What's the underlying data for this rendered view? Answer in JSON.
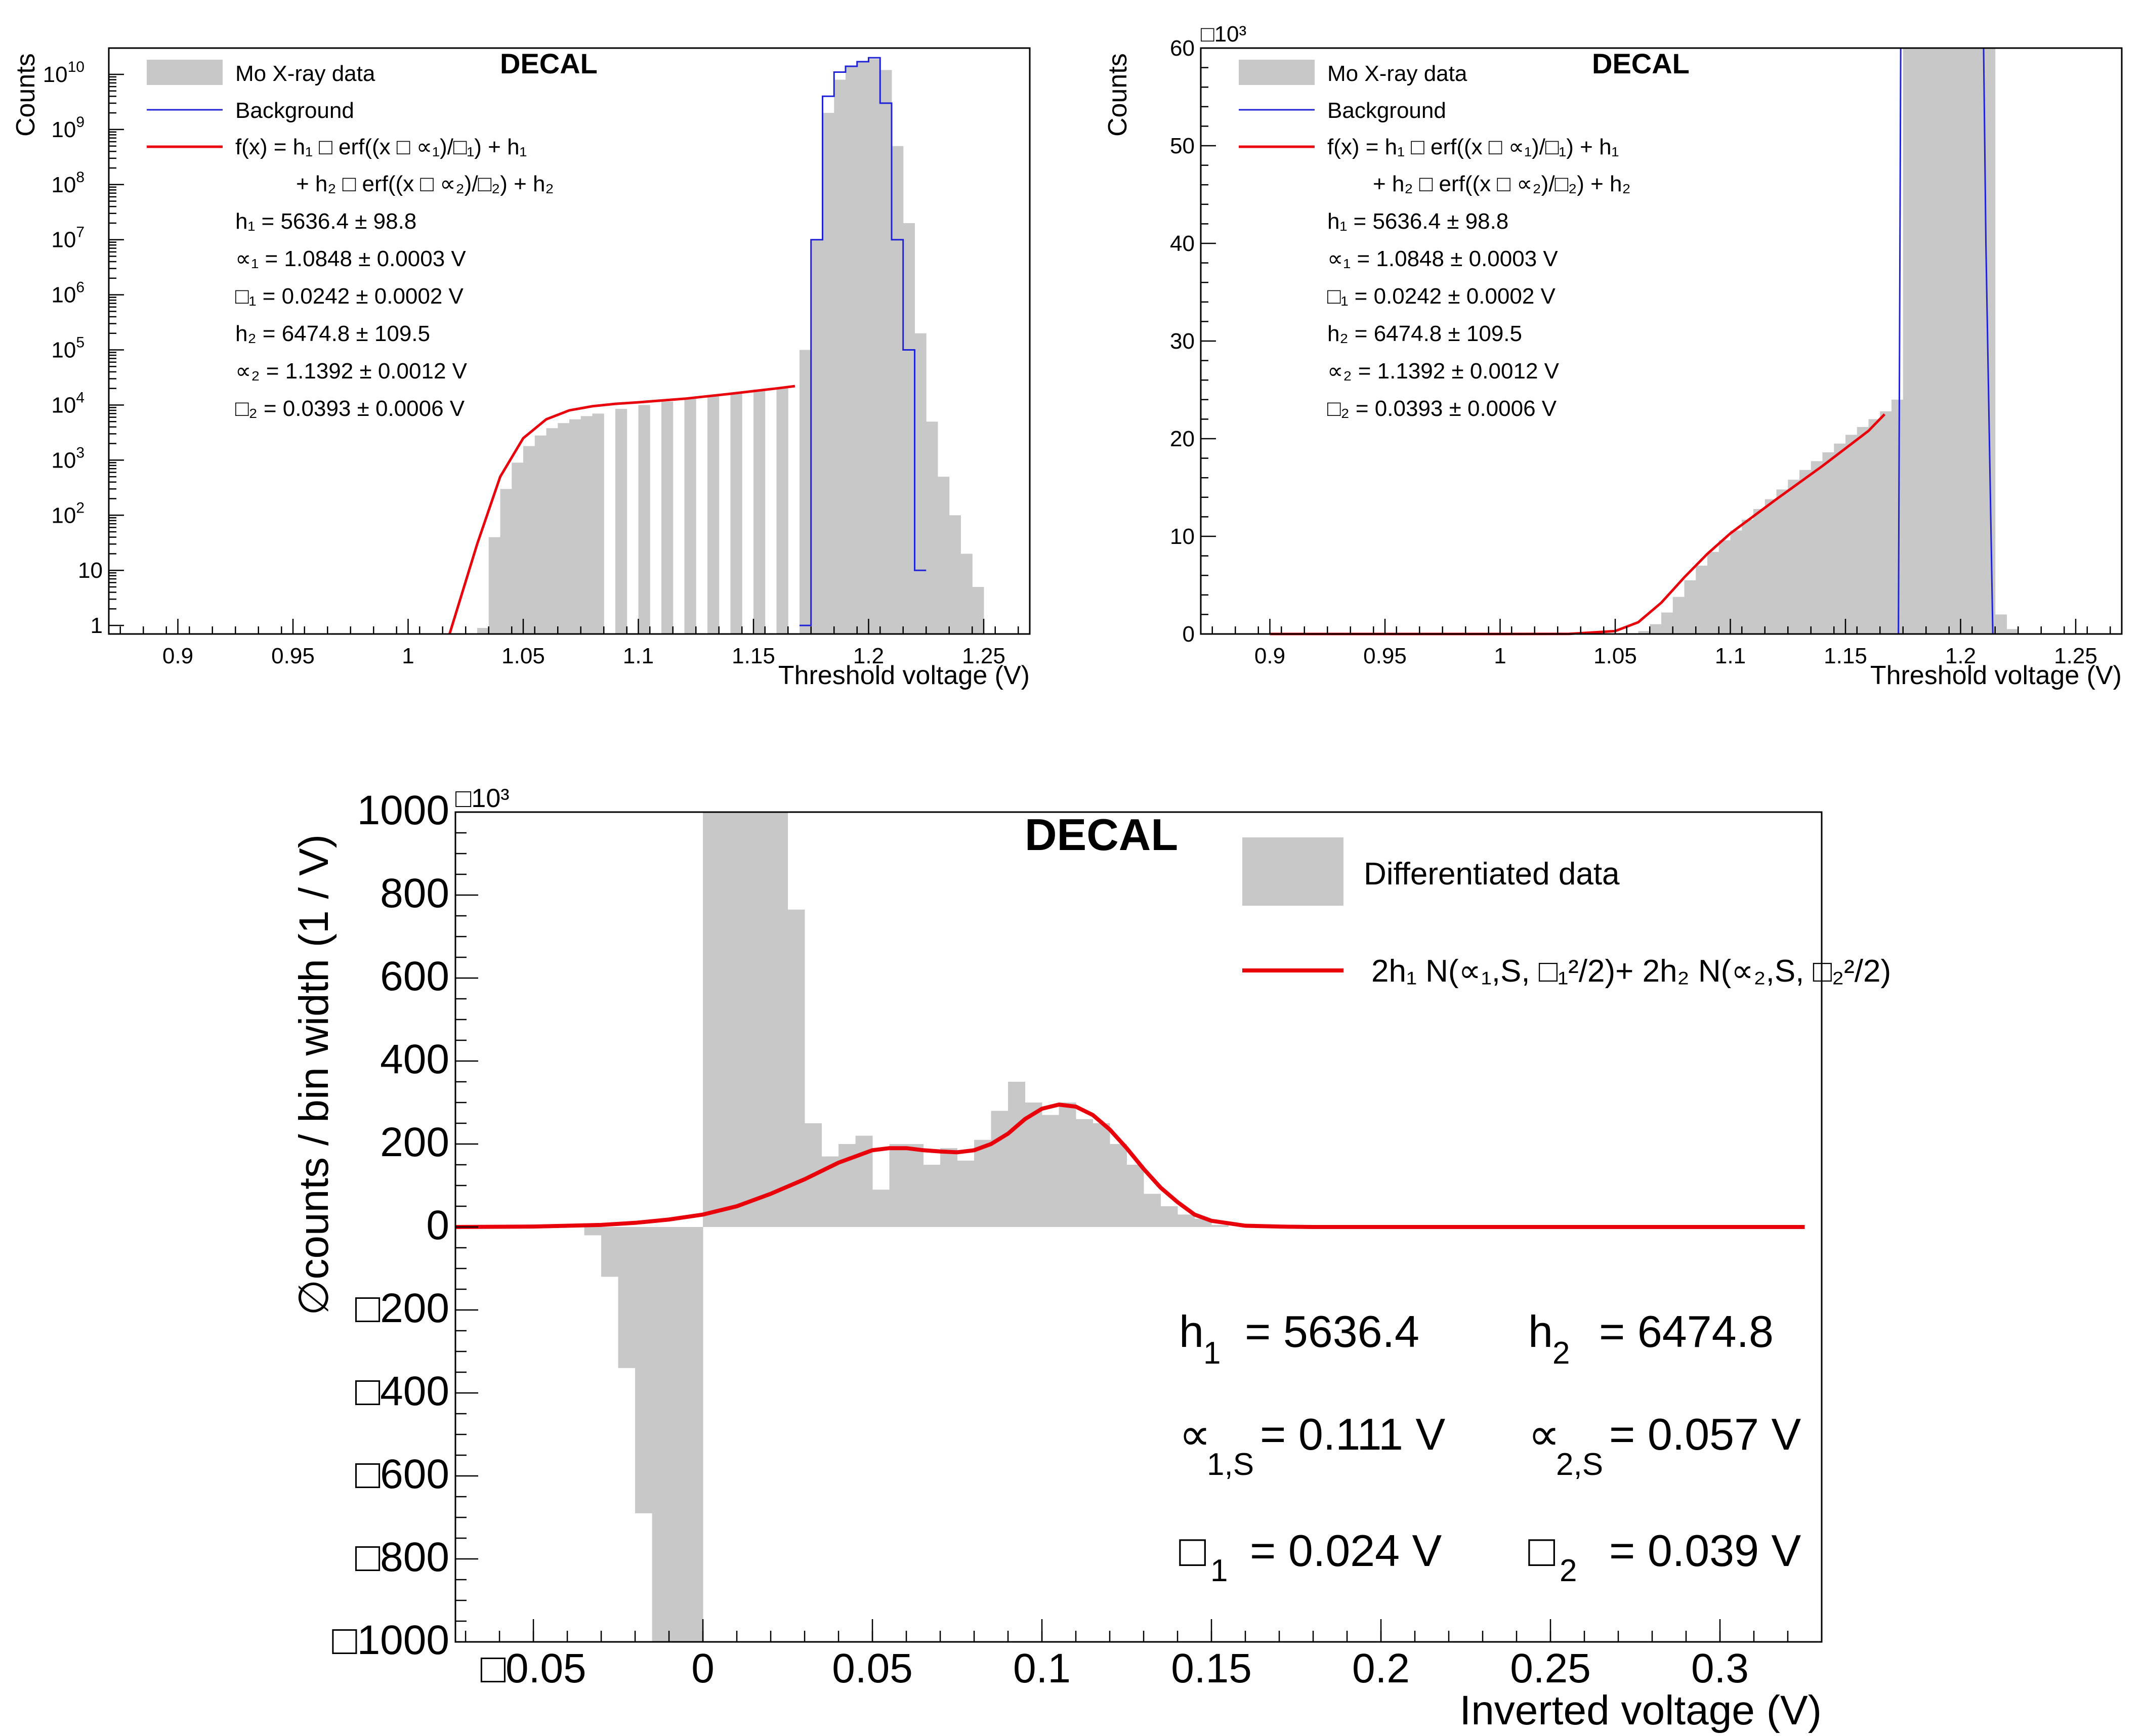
{
  "figure": {
    "colors": {
      "hist": "#c8c8c8",
      "fit": "#e8000b",
      "background": "#1f22d6"
    }
  },
  "chart_data": [
    {
      "type": "bar",
      "title": "DECAL",
      "panel": "top-left",
      "xlabel": "Threshold voltage (V)",
      "ylabel": "Counts",
      "yscale": "log",
      "xlim": [
        0.87,
        1.27
      ],
      "ylim": [
        0.7,
        30000000000
      ],
      "x_ticks": [
        "0.9",
        "0.95",
        "1",
        "1.05",
        "1.1",
        "1.15",
        "1.2",
        "1.25"
      ],
      "y_ticks": [
        {
          "base": "1",
          "exp": ""
        },
        {
          "base": "10",
          "exp": ""
        },
        {
          "base": "10",
          "exp": "2"
        },
        {
          "base": "10",
          "exp": "3"
        },
        {
          "base": "10",
          "exp": "4"
        },
        {
          "base": "10",
          "exp": "5"
        },
        {
          "base": "10",
          "exp": "6"
        },
        {
          "base": "10",
          "exp": "7"
        },
        {
          "base": "10",
          "exp": "8"
        },
        {
          "base": "10",
          "exp": "9"
        },
        {
          "base": "10",
          "exp": "10"
        }
      ],
      "legend": {
        "data": "Mo X-ray data",
        "background": "Background",
        "fit_line1": "f(x) =   h₁ □ erf((x □ ∝₁)/□₁) + h₁",
        "fit_line2": "+ h₂ □ erf((x □ ∝₂)/□₂) + h₂"
      },
      "params": [
        "h₁ = 5636.4 ± 98.8",
        "∝₁ = 1.0848 ± 0.0003 V",
        "□₁ = 0.0242 ± 0.0002 V",
        "h₂ = 6474.8 ± 109.5",
        "∝₂ = 1.1392 ± 0.0012 V",
        "□₂ = 0.0393 ± 0.0006 V"
      ],
      "data_x": [
        1.03,
        1.035,
        1.04,
        1.045,
        1.05,
        1.055,
        1.06,
        1.065,
        1.07,
        1.075,
        1.08,
        1.09,
        1.1,
        1.11,
        1.12,
        1.13,
        1.14,
        1.15,
        1.16,
        1.17,
        1.175,
        1.18,
        1.185,
        1.19,
        1.195,
        1.2,
        1.205,
        1.21,
        1.215,
        1.22,
        1.225,
        1.23,
        1.235,
        1.24,
        1.245
      ],
      "data_y": [
        0.9,
        40,
        300,
        900,
        1800,
        2800,
        3800,
        4700,
        5500,
        6300,
        7000,
        8500,
        10000,
        11500,
        13000,
        15000,
        17000,
        19000,
        21000,
        100000,
        10000000,
        2000000000,
        8000000000,
        14000000000,
        17000000000,
        19000000000,
        12000000000,
        500000000,
        20000000,
        200000,
        5000,
        500,
        100,
        20,
        5
      ],
      "background_x": [
        1.17,
        1.175,
        1.18,
        1.185,
        1.19,
        1.195,
        1.2,
        1.205,
        1.21,
        1.215,
        1.22
      ],
      "background_y": [
        1,
        10000000,
        4000000000,
        11000000000,
        14000000000,
        17000000000,
        20000000000,
        3000000000,
        10000000,
        100000,
        10
      ],
      "fit_x": [
        1.018,
        1.03,
        1.04,
        1.05,
        1.06,
        1.07,
        1.08,
        1.09,
        1.1,
        1.12,
        1.14,
        1.16,
        1.168
      ],
      "fit_y": [
        0.7,
        30,
        500,
        2500,
        5500,
        8000,
        9500,
        10500,
        11200,
        13000,
        16000,
        20000,
        22000
      ]
    },
    {
      "type": "bar",
      "title": "DECAL",
      "panel": "top-right",
      "xlabel": "Threshold voltage (V)",
      "ylabel": "Counts",
      "y_multiplier": "□10³",
      "xlim": [
        0.87,
        1.27
      ],
      "ylim": [
        0,
        60
      ],
      "x_ticks": [
        "0.9",
        "0.95",
        "1",
        "1.05",
        "1.1",
        "1.15",
        "1.2",
        "1.25"
      ],
      "y_ticks": [
        "0",
        "10",
        "20",
        "30",
        "40",
        "50",
        "60"
      ],
      "legend": {
        "data": "Mo X-ray data",
        "background": "Background",
        "fit_line1": "f(x) =   h₁ □ erf((x □ ∝₁)/□₁) + h₁",
        "fit_line2": "+ h₂ □ erf((x □ ∝₂)/□₂) + h₂"
      },
      "params": [
        "h₁ = 5636.4 ± 98.8",
        "∝₁ = 1.0848 ± 0.0003 V",
        "□₁ = 0.0242 ± 0.0002 V",
        "h₂ = 6474.8 ± 109.5",
        "∝₂ = 1.1392 ± 0.0012 V",
        "□₂ = 0.0393 ± 0.0006 V"
      ],
      "data_x": [
        1.06,
        1.065,
        1.07,
        1.075,
        1.08,
        1.085,
        1.09,
        1.095,
        1.1,
        1.105,
        1.11,
        1.115,
        1.12,
        1.125,
        1.13,
        1.135,
        1.14,
        1.145,
        1.15,
        1.155,
        1.16,
        1.165,
        1.17,
        1.175,
        1.18,
        1.185,
        1.19,
        1.195,
        1.2,
        1.205,
        1.21,
        1.215,
        1.22
      ],
      "data_y": [
        0.3,
        1.0,
        2.2,
        3.8,
        5.5,
        7.0,
        8.4,
        9.6,
        10.6,
        11.7,
        12.8,
        13.8,
        14.8,
        15.8,
        16.8,
        17.7,
        18.6,
        19.5,
        20.4,
        21.2,
        22,
        22.8,
        24,
        65,
        70,
        70,
        70,
        70,
        70,
        70,
        70,
        2,
        0.5
      ],
      "background_x": [
        1.173,
        1.174,
        1.18,
        1.19,
        1.2,
        1.205,
        1.21,
        1.211,
        1.214
      ],
      "background_y": [
        0,
        60,
        60,
        60,
        60,
        60,
        60,
        40,
        0
      ],
      "fit_x": [
        0.9,
        0.95,
        1.0,
        1.03,
        1.05,
        1.06,
        1.07,
        1.08,
        1.09,
        1.1,
        1.12,
        1.14,
        1.16,
        1.167
      ],
      "fit_y": [
        0,
        0,
        0,
        0.01,
        0.3,
        1.2,
        3.2,
        5.8,
        8.2,
        10.3,
        13.8,
        17.2,
        20.8,
        22.5
      ]
    },
    {
      "type": "bar",
      "title": "DECAL",
      "panel": "bottom",
      "xlabel": "Inverted voltage (V)",
      "ylabel": "∅counts / bin width (1 / V)",
      "y_multiplier": "□10³",
      "xlim": [
        -0.073,
        0.33
      ],
      "ylim": [
        -1000,
        1000
      ],
      "x_ticks": [
        "□0.05",
        "0",
        "0.05",
        "0.1",
        "0.15",
        "0.2",
        "0.25",
        "0.3"
      ],
      "y_ticks": [
        "□1000",
        "□800",
        "□600",
        "□400",
        "□200",
        "0",
        "200",
        "400",
        "600",
        "800",
        "1000"
      ],
      "legend": {
        "data": "Differentiated data",
        "fit": "2h₁ N(∝₁,S, □₁²/2)+ 2h₂ N(∝₂,S, □₂²/2)"
      },
      "params": {
        "h1": {
          "label": "h",
          "sub": "1",
          "value": "= 5636.4"
        },
        "h2": {
          "label": "h",
          "sub": "2",
          "value": "= 6474.8"
        },
        "mu1": {
          "label": "∝",
          "sub": "1,S",
          "value": "= 0.111 V"
        },
        "mu2": {
          "label": "∝",
          "sub": "2,S",
          "value": "= 0.057 V"
        },
        "s1": {
          "label": "□",
          "sub": "1",
          "value": "= 0.024 V"
        },
        "s2": {
          "label": "□",
          "sub": "2",
          "value": "= 0.039 V"
        }
      },
      "bins_left": [
        -0.035,
        -0.03,
        -0.025,
        -0.02,
        -0.015,
        -0.01,
        -0.005,
        0,
        0.005,
        0.01,
        0.015,
        0.02,
        0.025,
        0.03,
        0.035,
        0.04,
        0.045,
        0.05,
        0.055,
        0.06,
        0.065,
        0.07,
        0.075,
        0.08,
        0.085,
        0.09,
        0.095,
        0.1,
        0.105,
        0.11,
        0.115,
        0.12,
        0.125,
        0.13,
        0.135,
        0.14,
        0.145,
        0.15
      ],
      "bins_value": [
        -20,
        -120,
        -340,
        -690,
        -1000,
        -1000,
        -1000,
        1000,
        1000,
        1000,
        1000,
        1000,
        765,
        250,
        170,
        200,
        220,
        90,
        200,
        200,
        150,
        190,
        160,
        210,
        280,
        350,
        300,
        270,
        300,
        260,
        250,
        200,
        150,
        80,
        50,
        30,
        20,
        5
      ],
      "fit_x": [
        -0.073,
        -0.05,
        -0.03,
        -0.02,
        -0.01,
        0.0,
        0.01,
        0.02,
        0.03,
        0.04,
        0.05,
        0.055,
        0.06,
        0.065,
        0.07,
        0.075,
        0.08,
        0.085,
        0.09,
        0.095,
        0.1,
        0.105,
        0.11,
        0.115,
        0.12,
        0.125,
        0.13,
        0.135,
        0.14,
        0.145,
        0.15,
        0.16,
        0.17,
        0.18,
        0.2,
        0.25,
        0.3,
        0.325
      ],
      "fit_y": [
        0,
        1,
        5,
        10,
        18,
        30,
        50,
        80,
        115,
        155,
        185,
        190,
        190,
        185,
        182,
        180,
        185,
        200,
        225,
        260,
        285,
        295,
        290,
        270,
        235,
        190,
        140,
        95,
        60,
        30,
        15,
        3,
        1,
        0,
        0,
        0,
        0,
        0
      ]
    }
  ]
}
